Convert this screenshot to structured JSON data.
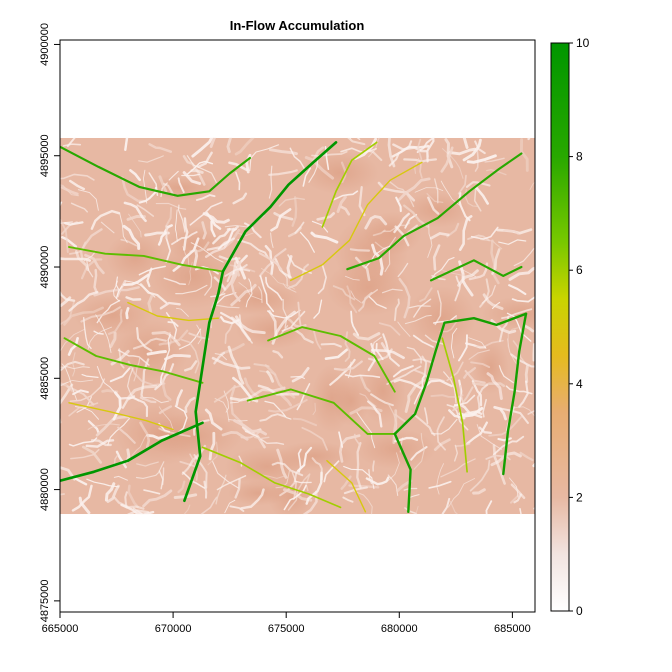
{
  "chart_data": {
    "type": "heatmap",
    "title": "In-Flow Accumulation",
    "xlabel": "",
    "ylabel": "",
    "xlim": [
      665000,
      686000
    ],
    "ylim": [
      4874500,
      4900200
    ],
    "x_ticks": [
      665000,
      670000,
      675000,
      680000,
      685000
    ],
    "x_tick_labels": [
      "665000",
      "670000",
      "675000",
      "680000",
      "685000"
    ],
    "y_ticks": [
      4875000,
      4880000,
      4885000,
      4890000,
      4895000,
      4900000
    ],
    "y_tick_labels": [
      "4875000",
      "4880000",
      "4885000",
      "4890000",
      "4895000",
      "4900000"
    ],
    "raster_extent": {
      "xmin": 665000,
      "xmax": 686000,
      "ymin": 4878900,
      "ymax": 4895800
    },
    "colorbar": {
      "min": 0,
      "max": 10,
      "ticks": [
        0,
        2,
        4,
        6,
        8,
        10
      ],
      "tick_labels": [
        "0",
        "2",
        "4",
        "6",
        "8",
        "10"
      ],
      "colors": [
        "#ffffff",
        "#f2e4e0",
        "#e8b9a3",
        "#e8ad72",
        "#e5bb1e",
        "#c9d400",
        "#78c800",
        "#28a800",
        "#009600"
      ],
      "stops": [
        0,
        0.1,
        0.2,
        0.35,
        0.45,
        0.55,
        0.65,
        0.8,
        1.0
      ]
    },
    "grid": false,
    "legend_position": "right",
    "streams": [
      {
        "level": 10,
        "points": [
          [
            677200,
            4895600
          ],
          [
            676200,
            4894700
          ],
          [
            675100,
            4893700
          ],
          [
            674300,
            4892700
          ],
          [
            673200,
            4891600
          ],
          [
            672200,
            4889800
          ],
          [
            672000,
            4888800
          ],
          [
            671600,
            4887500
          ],
          [
            671300,
            4885500
          ],
          [
            671000,
            4883500
          ],
          [
            671200,
            4881500
          ],
          [
            670500,
            4879500
          ]
        ]
      },
      {
        "level": 10,
        "points": [
          [
            671300,
            4883000
          ],
          [
            669500,
            4882200
          ],
          [
            668000,
            4881300
          ],
          [
            666500,
            4880800
          ],
          [
            665000,
            4880400
          ]
        ]
      },
      {
        "level": 9,
        "points": [
          [
            679800,
            4882500
          ],
          [
            680700,
            4883400
          ],
          [
            681200,
            4884800
          ],
          [
            681600,
            4886200
          ],
          [
            682000,
            4887500
          ],
          [
            683300,
            4887700
          ],
          [
            684300,
            4887400
          ],
          [
            685600,
            4887900
          ]
        ]
      },
      {
        "level": 9,
        "points": [
          [
            679800,
            4882500
          ],
          [
            680500,
            4880900
          ],
          [
            680400,
            4879000
          ]
        ]
      },
      {
        "level": 9,
        "points": [
          [
            685600,
            4887900
          ],
          [
            685300,
            4886200
          ],
          [
            685100,
            4884400
          ],
          [
            684800,
            4882600
          ],
          [
            684600,
            4880700
          ]
        ]
      },
      {
        "level": 8,
        "points": [
          [
            677700,
            4889900
          ],
          [
            679100,
            4890400
          ],
          [
            680200,
            4891400
          ],
          [
            681700,
            4892200
          ],
          [
            683100,
            4893400
          ],
          [
            684400,
            4894400
          ],
          [
            685400,
            4895100
          ]
        ]
      },
      {
        "level": 8,
        "points": [
          [
            681400,
            4889400
          ],
          [
            683300,
            4890300
          ],
          [
            684600,
            4889600
          ],
          [
            685400,
            4890000
          ]
        ]
      },
      {
        "level": 8,
        "points": [
          [
            665000,
            4895400
          ],
          [
            666700,
            4894500
          ],
          [
            668500,
            4893600
          ],
          [
            670200,
            4893200
          ],
          [
            671600,
            4893400
          ],
          [
            672500,
            4894200
          ],
          [
            673400,
            4894900
          ]
        ]
      },
      {
        "level": 7,
        "points": [
          [
            671300,
            4884800
          ],
          [
            669600,
            4885300
          ],
          [
            668100,
            4885600
          ],
          [
            666600,
            4886000
          ],
          [
            665200,
            4886800
          ]
        ]
      },
      {
        "level": 7,
        "points": [
          [
            672200,
            4889800
          ],
          [
            670400,
            4890100
          ],
          [
            668700,
            4890500
          ],
          [
            667000,
            4890600
          ],
          [
            665400,
            4890900
          ]
        ]
      },
      {
        "level": 7,
        "points": [
          [
            673300,
            4884000
          ],
          [
            675200,
            4884500
          ],
          [
            677100,
            4883900
          ],
          [
            678600,
            4882500
          ],
          [
            679800,
            4882500
          ]
        ]
      },
      {
        "level": 7,
        "points": [
          [
            674200,
            4886700
          ],
          [
            675700,
            4887300
          ],
          [
            677400,
            4886900
          ],
          [
            678900,
            4886000
          ],
          [
            679800,
            4884400
          ]
        ]
      },
      {
        "level": 6,
        "points": [
          [
            671300,
            4881900
          ],
          [
            673000,
            4881200
          ],
          [
            674500,
            4880300
          ],
          [
            676000,
            4879800
          ],
          [
            677400,
            4879200
          ]
        ]
      },
      {
        "level": 6,
        "points": [
          [
            676600,
            4891800
          ],
          [
            677200,
            4893400
          ],
          [
            677900,
            4894800
          ],
          [
            679000,
            4895600
          ]
        ]
      },
      {
        "level": 6,
        "points": [
          [
            681900,
            4886800
          ],
          [
            682400,
            4885000
          ],
          [
            682800,
            4883000
          ],
          [
            683000,
            4880800
          ]
        ]
      },
      {
        "level": 5,
        "points": [
          [
            668000,
            4888400
          ],
          [
            669300,
            4887800
          ],
          [
            670700,
            4887600
          ],
          [
            672000,
            4887700
          ]
        ]
      },
      {
        "level": 5,
        "points": [
          [
            665400,
            4883900
          ],
          [
            667200,
            4883500
          ],
          [
            668800,
            4883100
          ],
          [
            670000,
            4882700
          ]
        ]
      },
      {
        "level": 5,
        "points": [
          [
            675200,
            4889400
          ],
          [
            676600,
            4890100
          ],
          [
            677800,
            4891200
          ],
          [
            678600,
            4892800
          ],
          [
            679600,
            4893900
          ],
          [
            681000,
            4894700
          ]
        ]
      },
      {
        "level": 5,
        "points": [
          [
            676800,
            4881300
          ],
          [
            677900,
            4880300
          ],
          [
            678500,
            4879000
          ]
        ]
      }
    ]
  },
  "colorbar_label": ""
}
